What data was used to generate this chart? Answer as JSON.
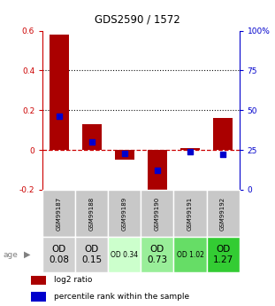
{
  "title": "GDS2590 / 1572",
  "samples": [
    "GSM99187",
    "GSM99188",
    "GSM99189",
    "GSM99190",
    "GSM99191",
    "GSM99192"
  ],
  "log2_ratio": [
    0.58,
    0.13,
    -0.05,
    -0.27,
    0.01,
    0.16
  ],
  "percentile_rank": [
    46,
    30,
    23,
    12,
    24,
    22
  ],
  "bar_color": "#aa0000",
  "dot_color": "#0000cc",
  "ylim_left": [
    -0.2,
    0.6
  ],
  "ylim_right": [
    0,
    100
  ],
  "yticks_left": [
    -0.2,
    0.0,
    0.2,
    0.4,
    0.6
  ],
  "yticks_right": [
    0,
    25,
    50,
    75,
    100
  ],
  "hlines": [
    0.2,
    0.4
  ],
  "zero_line_color": "#cc0000",
  "hline_color": "#111111",
  "age_labels": [
    "OD\n0.08",
    "OD\n0.15",
    "OD 0.34",
    "OD\n0.73",
    "OD 1.02",
    "OD\n1.27"
  ],
  "age_large_font": [
    true,
    true,
    false,
    true,
    false,
    true
  ],
  "age_colors": [
    "#d0d0d0",
    "#d0d0d0",
    "#ccffcc",
    "#99ee99",
    "#66dd66",
    "#33cc33"
  ],
  "sample_bg_color": "#c8c8c8",
  "left_tick_color": "#cc0000",
  "right_tick_color": "#0000cc",
  "legend_red": "log2 ratio",
  "legend_blue": "percentile rank within the sample"
}
